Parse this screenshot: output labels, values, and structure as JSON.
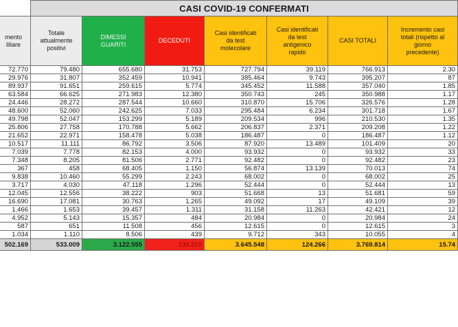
{
  "title": "CASI COVID-19 CONFERMATI",
  "headers": [
    {
      "key": "c0",
      "text": "mento\nliliare",
      "style": "h-grey"
    },
    {
      "key": "c1",
      "text": "Totale\nattualmente\npositivi",
      "style": "h-grey"
    },
    {
      "key": "c2",
      "text": "DIMESSI\nGUARITI",
      "style": "h-green"
    },
    {
      "key": "c3",
      "text": "DECEDUTI",
      "style": "h-red"
    },
    {
      "key": "c4",
      "text": "Casi identificati\nda test\nmolecolare",
      "style": "h-yellow"
    },
    {
      "key": "c5",
      "text": "Casi identificati\nda test\nantigenico\nrapido",
      "style": "h-yellow"
    },
    {
      "key": "c6",
      "text": "CASI TOTALI",
      "style": "h-yellow"
    },
    {
      "key": "c7",
      "text": "Incremento casi\ntotali (rispetto al\ngiorno\nprecedente)",
      "style": "h-yellow"
    }
  ],
  "rows": [
    [
      "72.770",
      "79.480",
      "655.680",
      "31.753",
      "727.794",
      "39.119",
      "766.913",
      "2.30"
    ],
    [
      "29.976",
      "31.807",
      "352.459",
      "10.941",
      "385.464",
      "9.743",
      "395.207",
      "87"
    ],
    [
      "89.937",
      "91.651",
      "259.615",
      "5.774",
      "345.452",
      "11.588",
      "357.040",
      "1.85"
    ],
    [
      "63.584",
      "66.625",
      "271.983",
      "12.380",
      "350.743",
      "245",
      "350.988",
      "1.17"
    ],
    [
      "24.446",
      "28.272",
      "287.544",
      "10.660",
      "310.870",
      "15.706",
      "326.576",
      "1.28"
    ],
    [
      "48.600",
      "52.060",
      "242.625",
      "7.033",
      "295.484",
      "6.234",
      "301.718",
      "1.67"
    ],
    [
      "49.798",
      "52.047",
      "153.299",
      "5.189",
      "209.534",
      "996",
      "210.530",
      "1.35"
    ],
    [
      "25.806",
      "27.758",
      "170.788",
      "5.662",
      "206.837",
      "2.371",
      "209.208",
      "1.22"
    ],
    [
      "21.652",
      "22.971",
      "158.478",
      "5.038",
      "186.487",
      "0",
      "186.487",
      "1.12"
    ],
    [
      "10.517",
      "11.111",
      "86.792",
      "3.506",
      "87.920",
      "13.489",
      "101.409",
      "20"
    ],
    [
      "7.039",
      "7.778",
      "82.153",
      "4.000",
      "93.932",
      "0",
      "93.932",
      "33"
    ],
    [
      "7.348",
      "8.205",
      "81.506",
      "2.771",
      "92.482",
      "0",
      "92.482",
      "23"
    ],
    [
      "367",
      "458",
      "68.405",
      "1.150",
      "56.874",
      "13.139",
      "70.013",
      "74"
    ],
    [
      "9.838",
      "10.460",
      "55.299",
      "2.243",
      "68.002",
      "0",
      "68.002",
      "25"
    ],
    [
      "3.717",
      "4.030",
      "47.118",
      "1.296",
      "52.444",
      "0",
      "52.444",
      "13"
    ],
    [
      "12.045",
      "12.556",
      "38.222",
      "903",
      "51.668",
      "13",
      "51.681",
      "59"
    ],
    [
      "16.690",
      "17.081",
      "30.763",
      "1.265",
      "49.092",
      "17",
      "49.109",
      "39"
    ],
    [
      "1.466",
      "1.653",
      "39.457",
      "1.311",
      "31.158",
      "11.263",
      "42.421",
      "12"
    ],
    [
      "4.952",
      "5.143",
      "15.357",
      "484",
      "20.984",
      "0",
      "20.984",
      "24"
    ],
    [
      "587",
      "651",
      "11.508",
      "456",
      "12.615",
      "0",
      "12.615",
      "3"
    ],
    [
      "1.034",
      "1.110",
      "8.506",
      "439",
      "9.712",
      "343",
      "10.055",
      "4"
    ]
  ],
  "totals": [
    "502.169",
    "533.009",
    "3.122.555",
    "130.210",
    "3.645.548",
    "124.266",
    "3.769.814",
    "15.74"
  ],
  "total_styles": [
    "t-grey",
    "t-grey",
    "t-green",
    "t-red",
    "t-yellow",
    "t-yellow",
    "t-yellow",
    "t-yellow"
  ],
  "colors": {
    "green": "#1fb04a",
    "red": "#f21b12",
    "yellow": "#ffc20e",
    "grey": "#dcdcdc"
  }
}
